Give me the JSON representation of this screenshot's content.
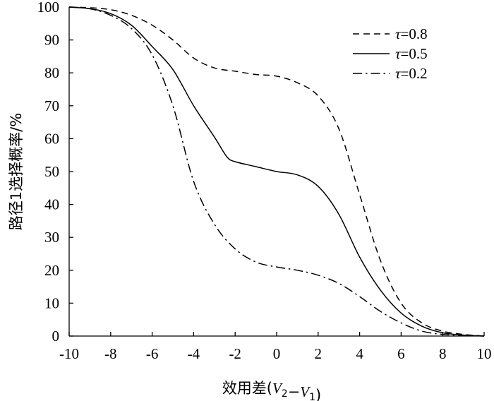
{
  "chart_data": {
    "type": "line",
    "title": "",
    "xlabel_parts": [
      {
        "text": "效用差(",
        "italic": false
      },
      {
        "text": "V",
        "italic": true
      },
      {
        "text": "2",
        "sub": true
      },
      {
        "text": "−",
        "italic": false
      },
      {
        "text": "V",
        "italic": true
      },
      {
        "text": "1",
        "sub": true
      },
      {
        "text": ")",
        "italic": false
      }
    ],
    "ylabel": "路径1选择概率/%",
    "xlim": [
      -10,
      10
    ],
    "ylim": [
      0,
      100
    ],
    "xticks": [
      -10,
      -8,
      -6,
      -4,
      -2,
      0,
      2,
      4,
      6,
      8,
      10
    ],
    "yticks": [
      0,
      10,
      20,
      30,
      40,
      50,
      60,
      70,
      80,
      90,
      100
    ],
    "grid": false,
    "legend_position": "top-right",
    "series": [
      {
        "name": "τ=0.8",
        "style": "dashed",
        "x": [
          -10,
          -9,
          -8,
          -7,
          -6,
          -5,
          -4,
          -3,
          -2,
          -1,
          0,
          1,
          2,
          3,
          4,
          5,
          6,
          7,
          8,
          9,
          10
        ],
        "y": [
          100,
          99.8,
          99.2,
          97.5,
          94.5,
          90,
          84.5,
          81.5,
          80.5,
          79.5,
          79,
          77,
          73,
          63,
          43,
          23,
          10,
          4,
          1.5,
          0.5,
          0
        ]
      },
      {
        "name": "τ=0.5",
        "style": "solid",
        "x": [
          -10,
          -9,
          -8,
          -7,
          -6,
          -5,
          -4,
          -3,
          -2.4,
          -2,
          -1,
          0,
          1,
          2,
          3,
          4,
          5,
          6,
          7,
          8,
          9,
          10
        ],
        "y": [
          100,
          99.5,
          98,
          94.5,
          88,
          81,
          70,
          60.5,
          54.5,
          53,
          51.5,
          50,
          49,
          45.5,
          37,
          24,
          14,
          7,
          3,
          1,
          0.3,
          0
        ]
      },
      {
        "name": "τ=0.2",
        "style": "dashdot",
        "x": [
          -10,
          -9,
          -8,
          -7,
          -6,
          -5,
          -4,
          -3,
          -2,
          -1,
          0,
          1,
          2,
          3,
          4,
          5,
          6,
          7,
          8,
          9,
          10
        ],
        "y": [
          100,
          99.5,
          97.5,
          93.5,
          85.5,
          70,
          47,
          34,
          26.5,
          22.5,
          21,
          20,
          18.5,
          16,
          12,
          7.5,
          4,
          1.5,
          0.5,
          0.2,
          0
        ]
      }
    ]
  }
}
